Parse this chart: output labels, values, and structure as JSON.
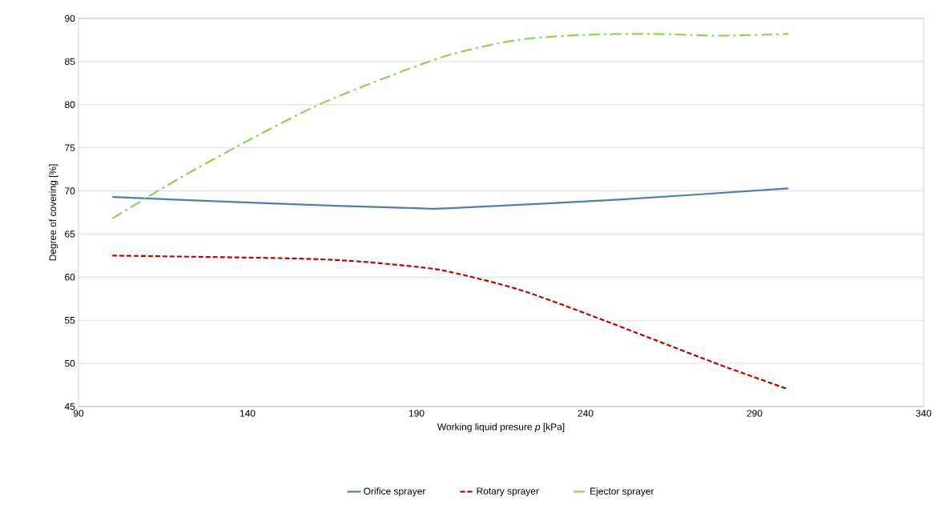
{
  "chart_data": {
    "type": "line",
    "xlabel": "Working liquid presure *p* [kPa]",
    "ylabel": "Degree of covering [%]",
    "series": [
      {
        "name": "Orifice sprayer",
        "color": "#4a7ebb",
        "line_style": "solid",
        "x": [
          100,
          150,
          190,
          200,
          250,
          300
        ],
        "values": [
          69.3,
          68.5,
          68.0,
          68.0,
          69.0,
          70.3
        ]
      },
      {
        "name": "Rotary sprayer",
        "color": "#c00000",
        "line_style": "dashed",
        "x": [
          100,
          150,
          170,
          190,
          200,
          220,
          240,
          260,
          280,
          300
        ],
        "values": [
          62.5,
          62.2,
          61.9,
          61.2,
          60.6,
          58.6,
          55.8,
          52.8,
          49.8,
          47.0
        ]
      },
      {
        "name": "Ejector sprayer",
        "color": "#92d050",
        "line_style": "dashdot",
        "x": [
          100,
          120,
          140,
          160,
          180,
          200,
          220,
          240,
          260,
          280,
          300
        ],
        "values": [
          66.8,
          71.5,
          75.8,
          79.8,
          83.0,
          85.8,
          87.5,
          88.1,
          88.2,
          88.0,
          88.2
        ]
      }
    ],
    "xlim": [
      90,
      340
    ],
    "xticks": [
      90,
      140,
      190,
      240,
      290,
      340
    ],
    "ylim": [
      45,
      90
    ],
    "yticks": [
      45,
      50,
      55,
      60,
      65,
      70,
      75,
      80,
      85,
      90
    ],
    "grid": "y",
    "legend": "bottom",
    "marker": "none"
  }
}
